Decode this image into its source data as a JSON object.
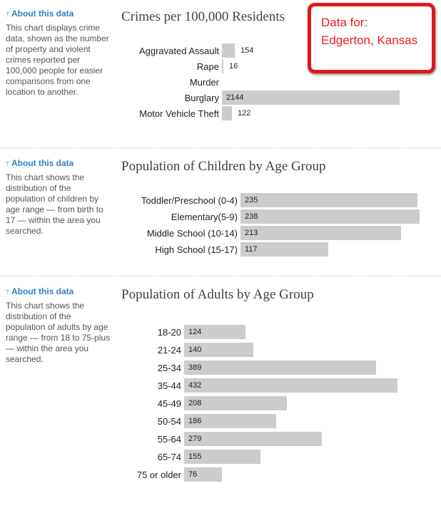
{
  "header_box": {
    "prefix": "Data for:",
    "location": "Edgerton, Kansas",
    "border_color": "#e11818",
    "text_color": "#ed1c1c"
  },
  "about": {
    "arrow": "↑",
    "label": "About this data"
  },
  "sections": [
    {
      "about_text": "This chart displays crime data, shown as the number of property and violent crimes reported per 100,000 people for easier comparisons from one location to another."
    },
    {
      "about_text": "This chart shows the distribution of the population of children by age range — from birth to 17 — within the area you searched."
    },
    {
      "about_text": "This chart shows the distribution of the population of adults by age range — from 18 to 75-plus — within the area you searched."
    }
  ],
  "chart_data": [
    {
      "type": "bar",
      "orientation": "horizontal",
      "title": "Crimes per 100,000 Residents",
      "categories": [
        "Aggravated Assault",
        "Rape",
        "Murder",
        "Burglary",
        "Motor Vehicle Theft"
      ],
      "values": [
        154,
        16,
        0,
        2144,
        122
      ],
      "bar_color": "#cccccc",
      "grid": false,
      "legend": false,
      "note": "Murder has no bar (value 0 / not reported)"
    },
    {
      "type": "bar",
      "orientation": "horizontal",
      "title": "Population of Children by Age Group",
      "categories": [
        "Toddler/Preschool (0-4)",
        "Elementary(5-9)",
        "Middle School (10-14)",
        "High School (15-17)"
      ],
      "values": [
        235,
        238,
        213,
        117
      ],
      "bar_color": "#cccccc",
      "grid": false,
      "legend": false
    },
    {
      "type": "bar",
      "orientation": "horizontal",
      "title": "Population of Adults by Age Group",
      "categories": [
        "18-20",
        "21-24",
        "25-34",
        "35-44",
        "45-49",
        "50-54",
        "55-64",
        "65-74",
        "75 or older"
      ],
      "values": [
        124,
        140,
        389,
        432,
        208,
        186,
        279,
        155,
        76
      ],
      "bar_color": "#cccccc",
      "grid": false,
      "legend": false
    }
  ],
  "colors": {
    "bar": "#cccccc",
    "link_blue": "#2f7fc1",
    "sidebar_text": "#555555",
    "title_text": "#3f4347",
    "label_text": "#222222",
    "divider": "#999999"
  }
}
